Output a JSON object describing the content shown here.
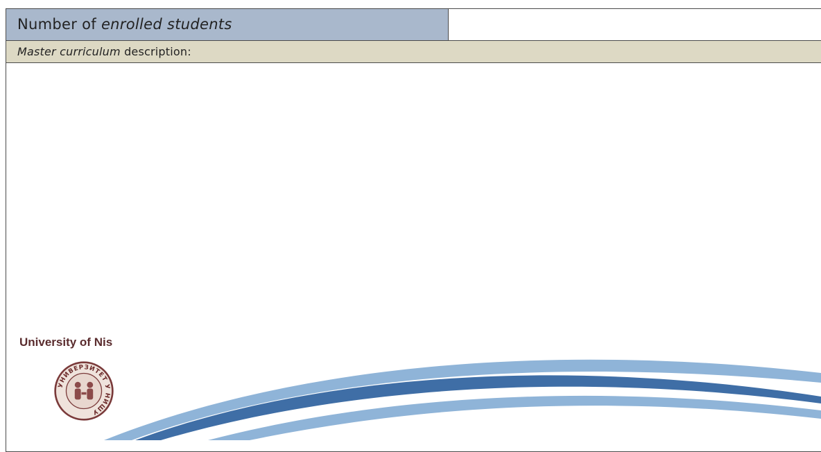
{
  "table": {
    "enrolled_label_plain": "Number of ",
    "enrolled_label_italic": "enrolled students",
    "enrolled_value": "",
    "description_label_italic": "Master curriculum",
    "description_label_plain": " description:",
    "description_value": ""
  },
  "footer": {
    "university_name": "University of Nis",
    "seal_text": "УНИВЕРЗИТЕТ У НИШУ",
    "seal_icon": "university-seal-icon",
    "colors": {
      "swoosh_dark": "#3f6ea6",
      "swoosh_light": "#8fb4d8",
      "brand_text": "#5a2c2e"
    }
  }
}
